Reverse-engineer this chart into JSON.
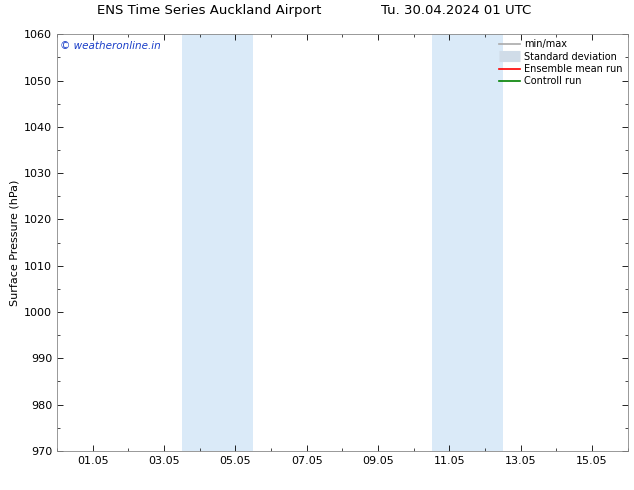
{
  "title": "ENS Time Series Auckland Airport",
  "title_right": "Tu. 30.04.2024 01 UTC",
  "ylabel": "Surface Pressure (hPa)",
  "ylim": [
    970,
    1060
  ],
  "yticks": [
    970,
    980,
    990,
    1000,
    1010,
    1020,
    1030,
    1040,
    1050,
    1060
  ],
  "xtick_positions": [
    1,
    3,
    5,
    7,
    9,
    11,
    13,
    15
  ],
  "xtick_labels": [
    "01.05",
    "03.05",
    "05.05",
    "07.05",
    "09.05",
    "11.05",
    "13.05",
    "15.05"
  ],
  "xlim": [
    0,
    16
  ],
  "shaded_bands": [
    {
      "xmin": 3.5,
      "xmax": 5.5
    },
    {
      "xmin": 10.5,
      "xmax": 12.5
    }
  ],
  "shaded_color": "#daeaf8",
  "watermark_text": "© weatheronline.in",
  "watermark_color": "#1a3ec8",
  "legend_items": [
    {
      "label": "min/max",
      "color": "#aaaaaa",
      "lw": 1.2,
      "type": "line"
    },
    {
      "label": "Standard deviation",
      "color": "#d0dce8",
      "lw": 8,
      "type": "bar"
    },
    {
      "label": "Ensemble mean run",
      "color": "#ff0000",
      "lw": 1.2,
      "type": "line"
    },
    {
      "label": "Controll run",
      "color": "#008000",
      "lw": 1.2,
      "type": "line"
    }
  ],
  "background_color": "#ffffff",
  "tick_label_fontsize": 8,
  "axis_label_fontsize": 8,
  "title_fontsize": 9.5,
  "watermark_fontsize": 7.5
}
